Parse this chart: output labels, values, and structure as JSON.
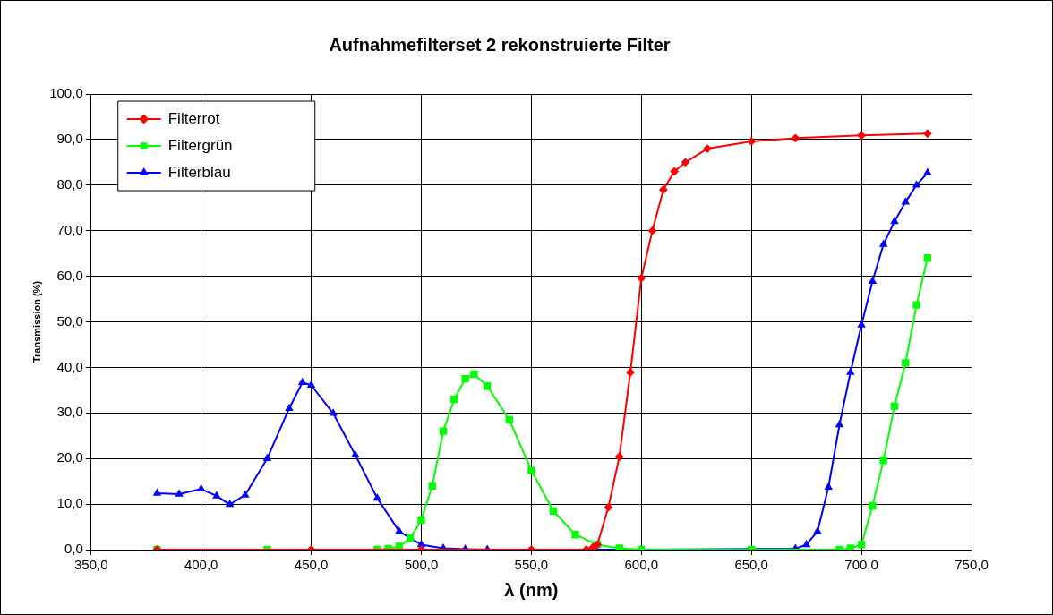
{
  "chart_data": {
    "type": "line",
    "title": "Aufnahmefilterset 2 rekonstruierte Filter",
    "xlabel": "λ (nm)",
    "ylabel": "Transmission (%)",
    "xlim": [
      350,
      750
    ],
    "xticks": [
      {
        "value": 350,
        "label": "350,0"
      },
      {
        "value": 400,
        "label": "400,0"
      },
      {
        "value": 450,
        "label": "450,0"
      },
      {
        "value": 500,
        "label": "500,0"
      },
      {
        "value": 550,
        "label": "550,0"
      },
      {
        "value": 600,
        "label": "600,0"
      },
      {
        "value": 650,
        "label": "650,0"
      },
      {
        "value": 700,
        "label": "700,0"
      },
      {
        "value": 750,
        "label": "750,0"
      }
    ],
    "ylim": [
      0,
      100
    ],
    "yticks": [
      {
        "value": 0,
        "label": "0,0"
      },
      {
        "value": 10,
        "label": "10,0"
      },
      {
        "value": 20,
        "label": "20,0"
      },
      {
        "value": 30,
        "label": "30,0"
      },
      {
        "value": 40,
        "label": "40,0"
      },
      {
        "value": 50,
        "label": "50,0"
      },
      {
        "value": 60,
        "label": "60,0"
      },
      {
        "value": 70,
        "label": "70,0"
      },
      {
        "value": 80,
        "label": "80,0"
      },
      {
        "value": 90,
        "label": "90,0"
      },
      {
        "value": 100,
        "label": "100,0"
      }
    ],
    "grid": true,
    "legend": "top left",
    "line_style": "solid",
    "series": [
      {
        "name": "Filterrot",
        "color": "#ff0000",
        "marker": "diamond",
        "x": [
          380,
          450,
          500,
          550,
          575,
          578,
          580,
          585,
          590,
          595,
          600,
          605,
          610,
          615,
          620,
          630,
          650,
          670,
          700,
          730
        ],
        "values": [
          0,
          0,
          0,
          0,
          0,
          0.5,
          1.1,
          9.3,
          20.4,
          38.9,
          59.6,
          70,
          79,
          83,
          85,
          88,
          89.6,
          90.3,
          90.9,
          91.3
        ]
      },
      {
        "name": "Filtergrün",
        "color": "#00ff00",
        "marker": "square",
        "x": [
          380,
          430,
          480,
          485,
          490,
          495,
          500,
          505,
          510,
          515,
          520,
          524,
          530,
          540,
          550,
          560,
          570,
          580,
          590,
          600,
          650,
          690,
          695,
          700,
          705,
          710,
          715,
          720,
          725,
          730
        ],
        "values": [
          0,
          0,
          0,
          0.2,
          0.7,
          2.5,
          6.5,
          14,
          26,
          33,
          37.5,
          38.5,
          35.9,
          28.5,
          17.4,
          8.5,
          3.3,
          1.1,
          0.3,
          0,
          0,
          0,
          0.3,
          1.1,
          9.6,
          19.6,
          31.5,
          41,
          53.7,
          64
        ]
      },
      {
        "name": "Filterblau",
        "color": "#0000ff",
        "marker": "triangle",
        "x": [
          380,
          390,
          400,
          407,
          413,
          420,
          430,
          440,
          446,
          450,
          460,
          470,
          480,
          490,
          500,
          510,
          520,
          530,
          600,
          670,
          675,
          680,
          685,
          690,
          695,
          700,
          705,
          710,
          715,
          720,
          725,
          730
        ],
        "values": [
          12.4,
          12.2,
          13.3,
          11.8,
          9.9,
          12,
          20,
          31,
          36.7,
          36.1,
          29.9,
          20.8,
          11.3,
          4,
          1.1,
          0.3,
          0.1,
          0,
          0,
          0.2,
          1.1,
          4,
          13.7,
          27.4,
          38.9,
          49.3,
          58.9,
          67,
          72,
          76.3,
          80,
          82.7
        ]
      }
    ]
  }
}
